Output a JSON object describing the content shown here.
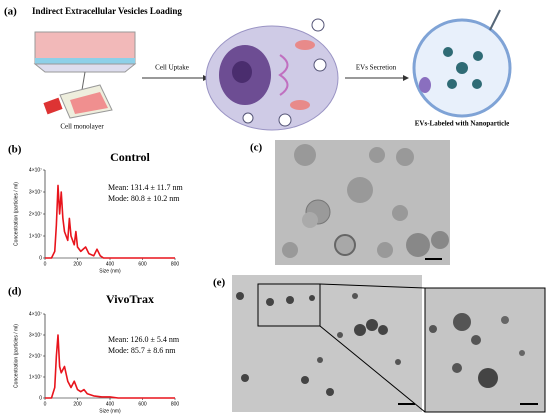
{
  "panels": {
    "a": {
      "label": "(a)",
      "title": "Indirect Extracellular Vesicles Loading",
      "cell_monolayer": "Cell monolayer",
      "cell_uptake": "Cell Uptake",
      "evs_secretion": "EVs Secretion",
      "evs_labeled": "EVs-Labeled with Nanoparticle"
    },
    "c": {
      "label": "(c)"
    },
    "e": {
      "label": "(e)"
    }
  },
  "chart_data": [
    {
      "type": "line",
      "panel_label": "(b)",
      "title": "Control",
      "annotations": [
        "Mean: 131.4 ± 11.7 nm",
        "Mode: 80.8 ± 10.2 nm"
      ],
      "x_label": "Size (nm)",
      "y_label": "Concentration (particles / ml)",
      "x": [
        0,
        40,
        60,
        70,
        80,
        90,
        100,
        110,
        120,
        140,
        150,
        160,
        180,
        190,
        200,
        220,
        250,
        270,
        300,
        320,
        340,
        360,
        400,
        600,
        800
      ],
      "series": [
        {
          "name": "Control",
          "color": "#e8141c",
          "values": [
            0,
            0,
            3000000,
            15000000,
            33000000,
            20000000,
            30000000,
            18000000,
            12000000,
            8000000,
            18000000,
            10000000,
            6000000,
            12000000,
            5000000,
            3000000,
            5000000,
            2000000,
            1000000,
            4000000,
            1000000,
            0,
            0,
            0,
            0
          ]
        }
      ],
      "xlim": [
        0,
        800
      ],
      "xticks": [
        0,
        200,
        400,
        600,
        800
      ],
      "ylim": [
        0,
        40000000
      ],
      "yticks": [
        0,
        {
          "value": 10000000,
          "label": "1×10⁷"
        },
        {
          "value": 20000000,
          "label": "2×10⁷"
        },
        {
          "value": 30000000,
          "label": "3×10⁷"
        },
        {
          "value": 40000000,
          "label": "4×10⁷"
        }
      ]
    },
    {
      "type": "line",
      "panel_label": "(d)",
      "title": "VivoTrax",
      "annotations": [
        "Mean: 126.0 ± 5.4 nm",
        "Mode: 85.7 ± 8.6 nm"
      ],
      "x_label": "Size (nm)",
      "y_label": "Concentration (particles / ml)",
      "x": [
        0,
        40,
        60,
        70,
        80,
        90,
        100,
        120,
        140,
        160,
        180,
        200,
        220,
        240,
        260,
        300,
        350,
        400,
        450,
        600,
        800
      ],
      "series": [
        {
          "name": "VivoTrax",
          "color": "#e8141c",
          "values": [
            0,
            0,
            5000000,
            20000000,
            30000000,
            15000000,
            12000000,
            15000000,
            8000000,
            5000000,
            8000000,
            4000000,
            3000000,
            4000000,
            2000000,
            1000000,
            500000,
            500000,
            0,
            0,
            0
          ]
        }
      ],
      "xlim": [
        0,
        800
      ],
      "xticks": [
        0,
        200,
        400,
        600,
        800
      ],
      "ylim": [
        0,
        40000000
      ],
      "yticks": [
        0,
        {
          "value": 10000000,
          "label": "1×10⁷"
        },
        {
          "value": 20000000,
          "label": "2×10⁷"
        },
        {
          "value": 30000000,
          "label": "3×10⁷"
        },
        {
          "value": 40000000,
          "label": "4×10⁷"
        }
      ]
    }
  ]
}
